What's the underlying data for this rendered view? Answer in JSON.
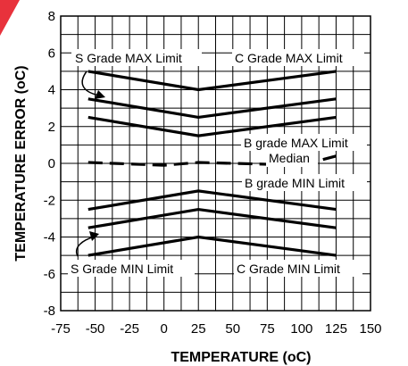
{
  "chart_data": {
    "type": "line",
    "title": "",
    "xlabel": "TEMPERATURE (oC)",
    "ylabel": "TEMPERATURE ERROR (oC)",
    "xlim": [
      -75,
      150
    ],
    "ylim": [
      -8,
      8
    ],
    "x_ticks": [
      "-75",
      "-50",
      "-25",
      "0",
      "25",
      "50",
      "75",
      "100",
      "125",
      "150"
    ],
    "y_ticks": [
      "-8",
      "-6",
      "-4",
      "-2",
      "0",
      "2",
      "4",
      "6",
      "8"
    ],
    "grid": true,
    "series": [
      {
        "name": "C Grade MAX Limit",
        "style": "solid",
        "x": [
          -55,
          25,
          125
        ],
        "y": [
          5,
          4,
          5
        ]
      },
      {
        "name": "S Grade MAX Limit",
        "style": "solid",
        "x": [
          -55,
          25,
          125
        ],
        "y": [
          3.5,
          2.5,
          3.5
        ]
      },
      {
        "name": "B grade MAX Limit",
        "style": "solid",
        "x": [
          -55,
          25,
          125
        ],
        "y": [
          2.5,
          1.5,
          2.5
        ]
      },
      {
        "name": "Median",
        "style": "dashed",
        "x": [
          -55,
          0,
          25,
          75,
          100,
          125
        ],
        "y": [
          0.05,
          -0.1,
          0.05,
          -0.05,
          -0.1,
          0.4
        ]
      },
      {
        "name": "B grade MIN Limit",
        "style": "solid",
        "x": [
          -55,
          25,
          125
        ],
        "y": [
          -2.5,
          -1.5,
          -2.5
        ]
      },
      {
        "name": "S Grade MIN Limit",
        "style": "solid",
        "x": [
          -55,
          25,
          125
        ],
        "y": [
          -3.5,
          -2.5,
          -3.5
        ]
      },
      {
        "name": "C Grade MIN Limit",
        "style": "solid",
        "x": [
          -55,
          25,
          125
        ],
        "y": [
          -5,
          -4,
          -5
        ]
      }
    ],
    "annotations": [
      "S Grade MAX Limit",
      "C Grade MAX Limit",
      "B grade MAX Limit",
      "Median",
      "B grade MIN Limit",
      "S Grade MIN Limit",
      "C Grade MIN Limit"
    ],
    "colors": {
      "line": "#000000",
      "grid": "#000000",
      "background": "#ffffff",
      "corner_mark": "#e8323c"
    }
  }
}
